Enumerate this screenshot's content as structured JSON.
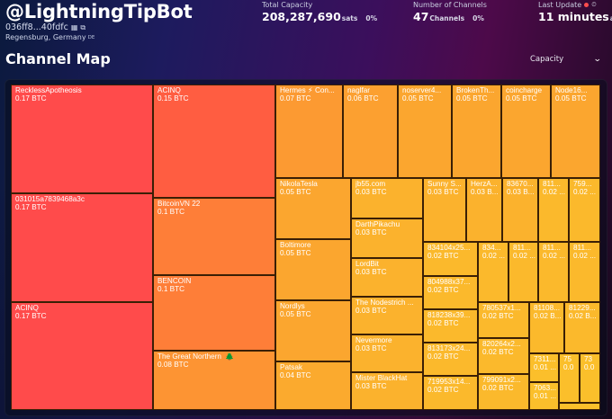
{
  "header": {
    "node_alias": "@LightningTipBot",
    "pubkey_short": "036ff8...40fdfc",
    "qr_icon": "qr-code-icon",
    "copy_icon": "copy-icon",
    "location": "Regensburg, Germany",
    "country_code": "DE"
  },
  "stats": {
    "capacity": {
      "label": "Total Capacity",
      "value": "208,287,690",
      "unit": "sats",
      "change": "0%"
    },
    "channels": {
      "label": "Number of Channels",
      "value": "47",
      "unit": "Channels",
      "change": "0%"
    },
    "last_update": {
      "label": "Last Update",
      "value": "11 minutes",
      "suffix": "ago",
      "status_color": "#ff4d4d"
    }
  },
  "section": {
    "title": "Channel Map",
    "sort_selected": "Capacity"
  },
  "colors": {
    "red": "#ff4b4b",
    "orange_red": "#ff5d41",
    "orange": "#ff8138",
    "light_orange": "#fd9433",
    "amber": "#fba62f",
    "yellow_amber": "#fbb22d",
    "yellow": "#fbbf2b",
    "border": "#3a1f05"
  },
  "channels": [
    {
      "name": "RecklessApotheosis",
      "capacity": "0.17 BTC",
      "color": "#ff4b4b"
    },
    {
      "name": "031015a7839468a3c",
      "capacity": "0.17 BTC",
      "color": "#ff4b4b"
    },
    {
      "name": "ACINQ",
      "capacity": "0.17 BTC",
      "color": "#ff4b4b"
    },
    {
      "name": "ACINQ",
      "capacity": "0.15 BTC",
      "color": "#ff5d41"
    },
    {
      "name": "BitcoinVN 22",
      "capacity": "0.1 BTC",
      "color": "#fe7e38"
    },
    {
      "name": "BENCOIN",
      "capacity": "0.1 BTC",
      "color": "#fe7e38"
    },
    {
      "name": "The Great Northern",
      "capacity": "0.08 BTC",
      "color": "#fd9433",
      "badge": "🌲"
    },
    {
      "name": "Hermes ⚡ Con...",
      "capacity": "0.07 BTC",
      "color": "#fc9a32"
    },
    {
      "name": "naglfar",
      "capacity": "0.06 BTC",
      "color": "#fca030"
    },
    {
      "name": "noserver4...",
      "capacity": "0.05 BTC",
      "color": "#fba62f"
    },
    {
      "name": "BrokenTh...",
      "capacity": "0.05 BTC",
      "color": "#fba62f"
    },
    {
      "name": "coincharge",
      "capacity": "0.05 BTC",
      "color": "#fba62f"
    },
    {
      "name": "Node16...",
      "capacity": "0.05 BTC",
      "color": "#fba62f"
    },
    {
      "name": "NikolaTesla",
      "capacity": "0.05 BTC",
      "color": "#fba62f"
    },
    {
      "name": "Boltimore",
      "capacity": "0.05 BTC",
      "color": "#fba62f"
    },
    {
      "name": "Nordlys",
      "capacity": "0.05 BTC",
      "color": "#fba62f"
    },
    {
      "name": "Patsak",
      "capacity": "0.04 BTC",
      "color": "#fbaa2e"
    },
    {
      "name": "jb55.com",
      "capacity": "0.03 BTC",
      "color": "#fbb22d"
    },
    {
      "name": "DarthPikachu",
      "capacity": "0.03 BTC",
      "color": "#fbb22d"
    },
    {
      "name": "LordBit",
      "capacity": "0.03 BTC",
      "color": "#fbb22d"
    },
    {
      "name": "The Nodestrich ...",
      "capacity": "0.03 BTC",
      "color": "#fbb22d"
    },
    {
      "name": "Nevermore",
      "capacity": "0.03 BTC",
      "color": "#fbb22d"
    },
    {
      "name": "Mister BlackHat",
      "capacity": "0.03 BTC",
      "color": "#fbb22d"
    },
    {
      "name": "Sunny S...",
      "capacity": "0.03 BTC",
      "color": "#fbb22d"
    },
    {
      "name": "HerzA...",
      "capacity": "0.03 B...",
      "color": "#fbb22d"
    },
    {
      "name": "83670...",
      "capacity": "0.03 B...",
      "color": "#fbb22d"
    },
    {
      "name": "811...",
      "capacity": "0.02 ...",
      "color": "#fbb92c"
    },
    {
      "name": "759...",
      "capacity": "0.02 ...",
      "color": "#fbb92c"
    },
    {
      "name": "834104x25...",
      "capacity": "0.02 BTC",
      "color": "#fbb92c"
    },
    {
      "name": "834...",
      "capacity": "0.02 ...",
      "color": "#fbb92c"
    },
    {
      "name": "811...",
      "capacity": "0.02 ...",
      "color": "#fbb92c"
    },
    {
      "name": "811...",
      "capacity": "0.02 ...",
      "color": "#fbb92c"
    },
    {
      "name": "811...",
      "capacity": "0.02 ...",
      "color": "#fbb92c"
    },
    {
      "name": "804988x37...",
      "capacity": "0.02 BTC",
      "color": "#fbb92c"
    },
    {
      "name": "818238x39...",
      "capacity": "0.02 BTC",
      "color": "#fbb92c"
    },
    {
      "name": "813173x24...",
      "capacity": "0.02 BTC",
      "color": "#fbb92c"
    },
    {
      "name": "719953x14...",
      "capacity": "0.02 BTC",
      "color": "#fbb92c"
    },
    {
      "name": "780537x1...",
      "capacity": "0.02 BTC",
      "color": "#fbb92c"
    },
    {
      "name": "820264x2...",
      "capacity": "0.02 BTC",
      "color": "#fbb92c"
    },
    {
      "name": "799091x2...",
      "capacity": "0.02 BTC",
      "color": "#fbb92c"
    },
    {
      "name": "81108...",
      "capacity": "0.02 B...",
      "color": "#fbb92c"
    },
    {
      "name": "81229...",
      "capacity": "0.02 B...",
      "color": "#fbb92c"
    },
    {
      "name": "7311...",
      "capacity": "0.01 ...",
      "color": "#fbbf2b"
    },
    {
      "name": "7063...",
      "capacity": "0.01 ...",
      "color": "#fbbf2b"
    },
    {
      "name": "75",
      "capacity": "0.0",
      "color": "#fbbf2b"
    },
    {
      "name": "73",
      "capacity": "0.0",
      "color": "#fbbf2b"
    },
    {
      "name": "",
      "capacity": "",
      "color": "#fbbf2b"
    }
  ]
}
